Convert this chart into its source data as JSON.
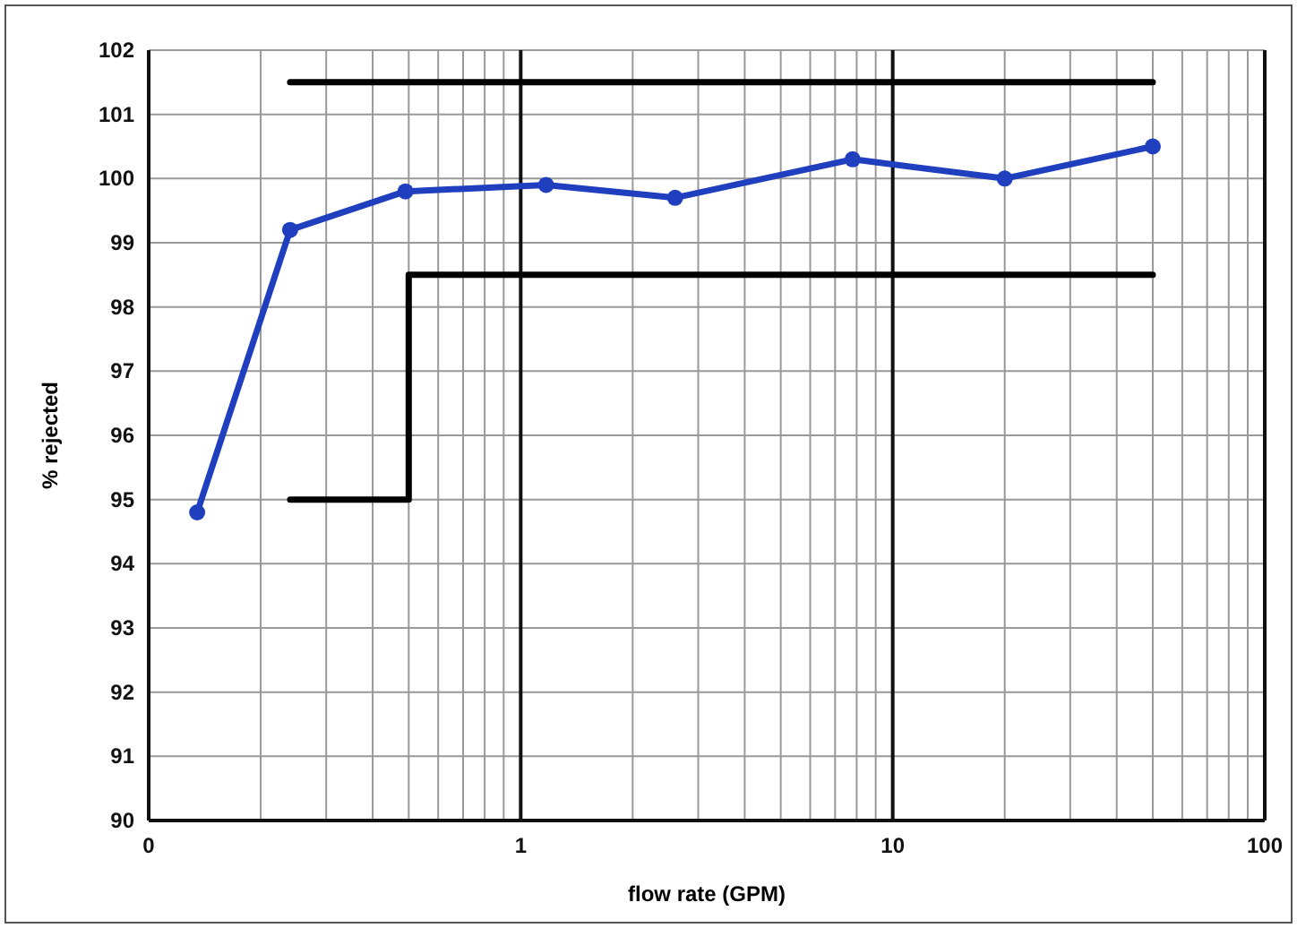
{
  "chart_data": {
    "type": "line",
    "xlabel": "flow rate (GPM)",
    "ylabel": "% rejected",
    "log": "x",
    "grid": true,
    "xlim": [
      0.1,
      100
    ],
    "ylim": [
      90,
      102
    ],
    "xticks": [
      {
        "value": 0.1,
        "label": "0"
      },
      1,
      10,
      100
    ],
    "yticks": [
      90,
      91,
      92,
      93,
      94,
      95,
      96,
      97,
      98,
      99,
      100,
      101,
      102
    ],
    "line_style": "solid",
    "series": [
      {
        "color": "#1f3fbf",
        "marker": "circle",
        "x": [
          0.135,
          0.24,
          0.49,
          1.17,
          2.6,
          7.8,
          20,
          50
        ],
        "values": [
          94.8,
          99.2,
          99.8,
          99.9,
          99.7,
          100.3,
          100,
          100.5
        ]
      },
      {
        "color": "#000000",
        "marker": "none",
        "x": [
          0.24,
          50
        ],
        "values": [
          101.5,
          101.5
        ]
      },
      {
        "color": "#000000",
        "marker": "none",
        "x": [
          0.24,
          0.5,
          0.5,
          50
        ],
        "values": [
          95,
          95,
          98.5,
          98.5
        ]
      }
    ]
  }
}
